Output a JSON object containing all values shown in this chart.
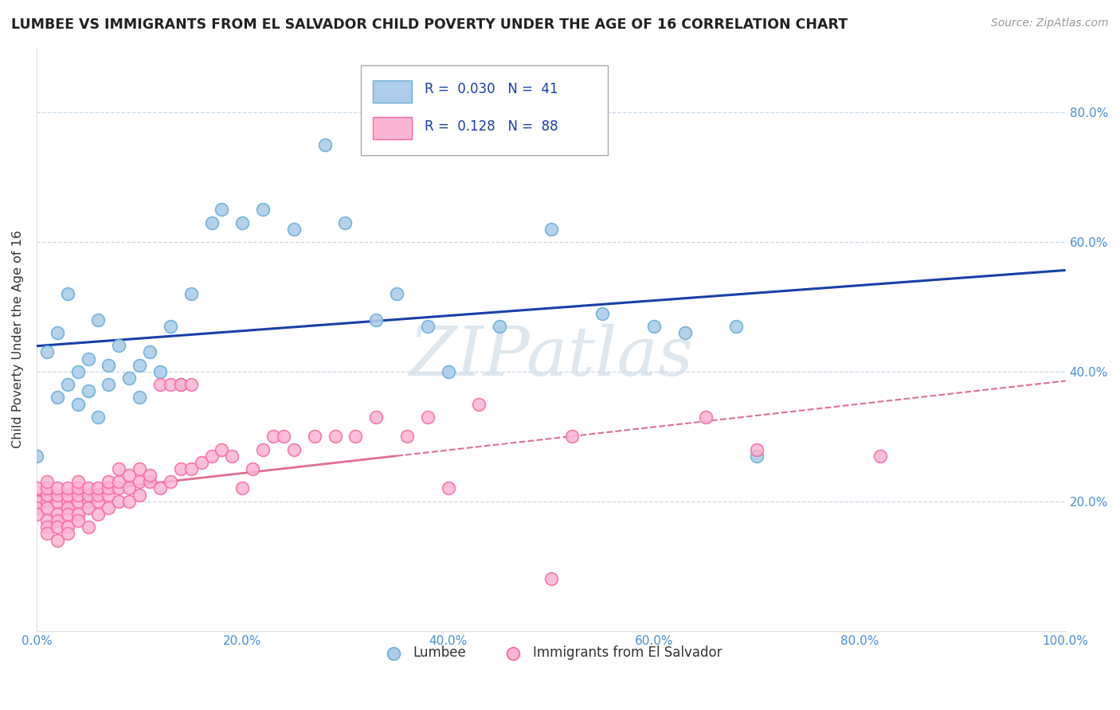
{
  "title": "LUMBEE VS IMMIGRANTS FROM EL SALVADOR CHILD POVERTY UNDER THE AGE OF 16 CORRELATION CHART",
  "source": "Source: ZipAtlas.com",
  "ylabel": "Child Poverty Under the Age of 16",
  "xlim": [
    0.0,
    1.0
  ],
  "ylim": [
    0.0,
    0.9
  ],
  "x_tick_vals": [
    0.0,
    0.2,
    0.4,
    0.6,
    0.8,
    1.0
  ],
  "x_tick_labels": [
    "0.0%",
    "20.0%",
    "40.0%",
    "60.0%",
    "80.0%",
    "100.0%"
  ],
  "y_tick_vals": [
    0.2,
    0.4,
    0.6,
    0.8
  ],
  "y_tick_labels": [
    "20.0%",
    "40.0%",
    "60.0%",
    "80.0%"
  ],
  "legend_labels": [
    "Lumbee",
    "Immigrants from El Salvador"
  ],
  "lumbee_R": "0.030",
  "lumbee_N": "41",
  "salvador_R": "0.128",
  "salvador_N": "88",
  "lumbee_fill": "#aecde8",
  "lumbee_edge": "#6baed6",
  "salvador_fill": "#fbb4d4",
  "salvador_edge": "#f768a1",
  "lumbee_line_color": "#1a3fa8",
  "salvador_line_color": "#e07090",
  "grid_color": "#c8d8e8",
  "tick_color": "#4a90d9",
  "title_color": "#222222",
  "source_color": "#999999",
  "watermark": "ZIPatlas",
  "watermark_color": "#d0dde8"
}
